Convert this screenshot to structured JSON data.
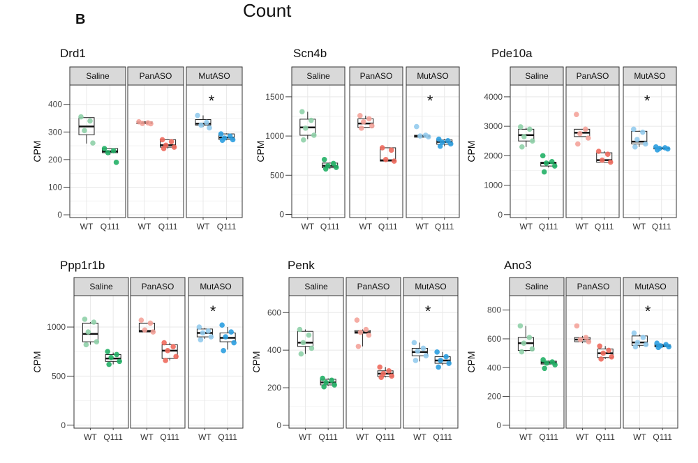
{
  "panel_label": "B",
  "figure_title": "Count",
  "chart_data": [
    {
      "type": "box",
      "title": "Drd1",
      "ylabel": "CPM",
      "ylim": [
        -10,
        470
      ],
      "yticks": [
        0,
        100,
        200,
        300,
        400
      ],
      "facets": [
        "Saline",
        "PanASO",
        "MutASO"
      ],
      "categories": [
        "WT",
        "Q111"
      ],
      "significant_facet": "MutASO",
      "significance_label": "*",
      "colors": {
        "Saline": [
          "#8fd0a8",
          "#22b066"
        ],
        "PanASO": [
          "#f4a39a",
          "#ee6a5d"
        ],
        "MutASO": [
          "#93cbed",
          "#2c9ee0"
        ]
      },
      "boxes": {
        "Saline": [
          {
            "q1": 290,
            "median": 320,
            "q3": 352,
            "wmin": 258,
            "wmax": 352,
            "points": [
              355,
              340,
              305,
              260
            ]
          },
          {
            "q1": 225,
            "median": 230,
            "q3": 240,
            "wmin": 218,
            "wmax": 240,
            "points": [
              240,
              232,
              225,
              190
            ]
          }
        ],
        "PanASO": [
          {
            "q1": 330,
            "median": 333,
            "q3": 337,
            "wmin": 330,
            "wmax": 337,
            "points": [
              337,
              333,
              331,
              330
            ]
          },
          {
            "q1": 245,
            "median": 252,
            "q3": 272,
            "wmin": 240,
            "wmax": 272,
            "points": [
              272,
              265,
              252,
              245,
              240
            ]
          }
        ],
        "MutASO": [
          {
            "q1": 325,
            "median": 330,
            "q3": 345,
            "wmin": 318,
            "wmax": 360,
            "points": [
              360,
              335,
              325,
              315
            ]
          },
          {
            "q1": 273,
            "median": 280,
            "q3": 293,
            "wmin": 270,
            "wmax": 295,
            "points": [
              293,
              285,
              278,
              272,
              270
            ]
          }
        ]
      }
    },
    {
      "type": "box",
      "title": "Scn4b",
      "ylabel": "CPM",
      "ylim": [
        -40,
        1650
      ],
      "yticks": [
        0,
        500,
        1000,
        1500
      ],
      "facets": [
        "Saline",
        "PanASO",
        "MutASO"
      ],
      "categories": [
        "WT",
        "Q111"
      ],
      "significant_facet": "MutASO",
      "significance_label": "*",
      "colors": {
        "Saline": [
          "#8fd0a8",
          "#22b066"
        ],
        "PanASO": [
          "#f4a39a",
          "#ee6a5d"
        ],
        "MutASO": [
          "#93cbed",
          "#2c9ee0"
        ]
      },
      "boxes": {
        "Saline": [
          {
            "q1": 1010,
            "median": 1110,
            "q3": 1215,
            "wmin": 960,
            "wmax": 1310,
            "points": [
              1310,
              1200,
              1100,
              1010,
              950
            ]
          },
          {
            "q1": 595,
            "median": 620,
            "q3": 655,
            "wmin": 580,
            "wmax": 660,
            "points": [
              700,
              650,
              620,
              600,
              580
            ]
          }
        ],
        "PanASO": [
          {
            "q1": 1110,
            "median": 1160,
            "q3": 1220,
            "wmin": 1110,
            "wmax": 1260,
            "points": [
              1260,
              1220,
              1180,
              1130,
              1100
            ]
          },
          {
            "q1": 680,
            "median": 690,
            "q3": 850,
            "wmin": 680,
            "wmax": 850,
            "points": [
              850,
              820,
              700,
              680
            ]
          }
        ],
        "MutASO": [
          {
            "q1": 985,
            "median": 1000,
            "q3": 1010,
            "wmin": 985,
            "wmax": 1010,
            "points": [
              1120,
              1010,
              1000,
              990
            ]
          },
          {
            "q1": 895,
            "median": 925,
            "q3": 950,
            "wmin": 870,
            "wmax": 960,
            "points": [
              960,
              940,
              920,
              900,
              870
            ]
          }
        ]
      }
    },
    {
      "type": "box",
      "title": "Pde10a",
      "ylabel": "CPM",
      "ylim": [
        -100,
        4400
      ],
      "yticks": [
        0,
        1000,
        2000,
        3000,
        4000
      ],
      "facets": [
        "Saline",
        "PanASO",
        "MutASO"
      ],
      "categories": [
        "WT",
        "Q111"
      ],
      "significant_facet": "MutASO",
      "significance_label": "*",
      "colors": {
        "Saline": [
          "#8fd0a8",
          "#22b066"
        ],
        "PanASO": [
          "#f4a39a",
          "#ee6a5d"
        ],
        "MutASO": [
          "#93cbed",
          "#2c9ee0"
        ]
      },
      "boxes": {
        "Saline": [
          {
            "q1": 2500,
            "median": 2700,
            "q3": 2900,
            "wmin": 2300,
            "wmax": 2950,
            "points": [
              2980,
              2900,
              2650,
              2500,
              2300
            ]
          },
          {
            "q1": 1650,
            "median": 1750,
            "q3": 1780,
            "wmin": 1600,
            "wmax": 1800,
            "points": [
              2000,
              1800,
              1750,
              1650,
              1450
            ]
          }
        ],
        "PanASO": [
          {
            "q1": 2650,
            "median": 2780,
            "q3": 2900,
            "wmin": 2650,
            "wmax": 2900,
            "points": [
              3400,
              2900,
              2750,
              2600,
              2400
            ]
          },
          {
            "q1": 1780,
            "median": 1850,
            "q3": 2100,
            "wmin": 1780,
            "wmax": 2150,
            "points": [
              2150,
              2050,
              1850,
              1780
            ]
          }
        ],
        "MutASO": [
          {
            "q1": 2400,
            "median": 2480,
            "q3": 2830,
            "wmin": 2300,
            "wmax": 2850,
            "points": [
              2900,
              2800,
              2550,
              2400,
              2300
            ]
          },
          {
            "q1": 2230,
            "median": 2250,
            "q3": 2270,
            "wmin": 2200,
            "wmax": 2290,
            "points": [
              2300,
              2270,
              2250,
              2230,
              2200
            ]
          }
        ]
      }
    },
    {
      "type": "box",
      "title": "Ppp1r1b",
      "ylabel": "CPM",
      "ylim": [
        -30,
        1320
      ],
      "yticks": [
        0,
        500,
        1000
      ],
      "facets": [
        "Saline",
        "PanASO",
        "MutASO"
      ],
      "categories": [
        "WT",
        "Q111"
      ],
      "significant_facet": "MutASO",
      "significance_label": "*",
      "colors": {
        "Saline": [
          "#8fd0a8",
          "#22b066"
        ],
        "PanASO": [
          "#f4a39a",
          "#ee6a5d"
        ],
        "MutASO": [
          "#93cbed",
          "#2c9ee0"
        ]
      },
      "boxes": {
        "Saline": [
          {
            "q1": 850,
            "median": 930,
            "q3": 1040,
            "wmin": 820,
            "wmax": 1050,
            "points": [
              1080,
              1050,
              950,
              850,
              820
            ]
          },
          {
            "q1": 650,
            "median": 680,
            "q3": 720,
            "wmin": 620,
            "wmax": 740,
            "points": [
              750,
              720,
              690,
              650,
              620
            ]
          }
        ],
        "PanASO": [
          {
            "q1": 950,
            "median": 960,
            "q3": 1040,
            "wmin": 950,
            "wmax": 1040,
            "points": [
              1070,
              1040,
              970,
              950
            ]
          },
          {
            "q1": 680,
            "median": 760,
            "q3": 820,
            "wmin": 660,
            "wmax": 840,
            "points": [
              840,
              800,
              760,
              700,
              660
            ]
          }
        ],
        "MutASO": [
          {
            "q1": 900,
            "median": 940,
            "q3": 980,
            "wmin": 880,
            "wmax": 990,
            "points": [
              1000,
              960,
              940,
              900,
              870
            ]
          },
          {
            "q1": 850,
            "median": 890,
            "q3": 940,
            "wmin": 770,
            "wmax": 1000,
            "points": [
              1020,
              950,
              900,
              840,
              760
            ]
          }
        ]
      }
    },
    {
      "type": "box",
      "title": "Penk",
      "ylabel": "CPM",
      "ylim": [
        -15,
        690
      ],
      "yticks": [
        0,
        200,
        400,
        600
      ],
      "facets": [
        "Saline",
        "PanASO",
        "MutASO"
      ],
      "categories": [
        "WT",
        "Q111"
      ],
      "significant_facet": "MutASO",
      "significance_label": "*",
      "colors": {
        "Saline": [
          "#8fd0a8",
          "#22b066"
        ],
        "PanASO": [
          "#f4a39a",
          "#ee6a5d"
        ],
        "MutASO": [
          "#93cbed",
          "#2c9ee0"
        ]
      },
      "boxes": {
        "Saline": [
          {
            "q1": 420,
            "median": 440,
            "q3": 500,
            "wmin": 380,
            "wmax": 510,
            "points": [
              510,
              480,
              440,
              410,
              380
            ]
          },
          {
            "q1": 215,
            "median": 228,
            "q3": 245,
            "wmin": 210,
            "wmax": 250,
            "points": [
              250,
              240,
              228,
              215,
              205
            ]
          }
        ],
        "PanASO": [
          {
            "q1": 490,
            "median": 495,
            "q3": 505,
            "wmin": 420,
            "wmax": 510,
            "points": [
              560,
              510,
              495,
              480,
              420
            ]
          },
          {
            "q1": 260,
            "median": 275,
            "q3": 290,
            "wmin": 255,
            "wmax": 310,
            "points": [
              310,
              290,
              275,
              262,
              255
            ]
          }
        ],
        "MutASO": [
          {
            "q1": 370,
            "median": 390,
            "q3": 410,
            "wmin": 340,
            "wmax": 440,
            "points": [
              440,
              410,
              395,
              370,
              345
            ]
          },
          {
            "q1": 330,
            "median": 345,
            "q3": 365,
            "wmin": 320,
            "wmax": 390,
            "points": [
              390,
              365,
              345,
              330,
              310
            ]
          }
        ]
      }
    },
    {
      "type": "box",
      "title": "Ano3",
      "ylabel": "CPM",
      "ylim": [
        -20,
        900
      ],
      "yticks": [
        0,
        200,
        400,
        600,
        800
      ],
      "facets": [
        "Saline",
        "PanASO",
        "MutASO"
      ],
      "categories": [
        "WT",
        "Q111"
      ],
      "significant_facet": "MutASO",
      "significance_label": "*",
      "colors": {
        "Saline": [
          "#8fd0a8",
          "#22b066"
        ],
        "PanASO": [
          "#f4a39a",
          "#ee6a5d"
        ],
        "MutASO": [
          "#93cbed",
          "#2c9ee0"
        ]
      },
      "boxes": {
        "Saline": [
          {
            "q1": 520,
            "median": 570,
            "q3": 610,
            "wmin": 510,
            "wmax": 690,
            "points": [
              690,
              610,
              570,
              530,
              510
            ]
          },
          {
            "q1": 425,
            "median": 435,
            "q3": 445,
            "wmin": 420,
            "wmax": 450,
            "points": [
              455,
              440,
              432,
              420,
              395
            ]
          }
        ],
        "PanASO": [
          {
            "q1": 580,
            "median": 595,
            "q3": 610,
            "wmin": 570,
            "wmax": 620,
            "points": [
              690,
              610,
              595,
              580
            ]
          },
          {
            "q1": 470,
            "median": 500,
            "q3": 530,
            "wmin": 460,
            "wmax": 550,
            "points": [
              550,
              520,
              500,
              475,
              460
            ]
          }
        ],
        "MutASO": [
          {
            "q1": 555,
            "median": 575,
            "q3": 620,
            "wmin": 540,
            "wmax": 630,
            "points": [
              640,
              610,
              575,
              560,
              545
            ]
          },
          {
            "q1": 545,
            "median": 552,
            "q3": 560,
            "wmin": 540,
            "wmax": 565,
            "points": [
              570,
              560,
              552,
              545,
              540
            ]
          }
        ]
      }
    }
  ]
}
